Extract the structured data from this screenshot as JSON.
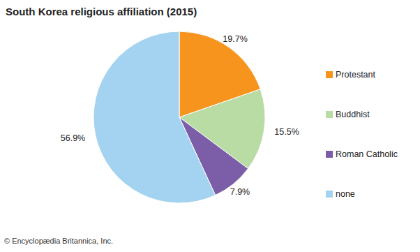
{
  "chart_data": {
    "type": "pie",
    "title": "South Korea religious affiliation (2015)",
    "categories": [
      "Protestant",
      "Buddhist",
      "Roman Catholic",
      "none"
    ],
    "values": [
      19.7,
      15.5,
      7.9,
      56.9
    ],
    "value_labels": [
      "19.7%",
      "15.5%",
      "7.9%",
      "56.9%"
    ],
    "colors": [
      "#f7941d",
      "#b8dca4",
      "#7b5ea7",
      "#a3d3f0"
    ],
    "data_labels": true,
    "legend": "right",
    "annotations": [
      "© Encyclopædia Britannica, Inc."
    ]
  }
}
